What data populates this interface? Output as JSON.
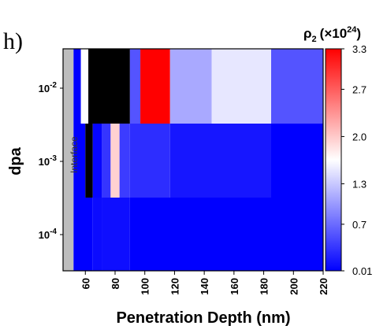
{
  "panel_label": "h)",
  "chart_data": {
    "type": "heatmap",
    "xlabel": "Penetration Depth (nm)",
    "ylabel": "dpa",
    "x_ticks": [
      "60",
      "80",
      "100",
      "120",
      "140",
      "160",
      "180",
      "200",
      "220"
    ],
    "y_ticks": [
      {
        "base": "10",
        "exp": "-2"
      },
      {
        "base": "10",
        "exp": "-3"
      },
      {
        "base": "10",
        "exp": "-4"
      }
    ],
    "xlim": [
      45,
      220
    ],
    "interface_label": "Interface",
    "interface_range_nm": [
      45,
      52
    ],
    "colorbar": {
      "title_symbol": "ρ",
      "title_sub": "2",
      "title_factor": "(×10",
      "title_exp": "24",
      "title_close": ")",
      "min": 0.01,
      "max": 3.3,
      "ticks": [
        "3.3",
        "2.7",
        "2.0",
        "1.3",
        "0.7",
        "0.01"
      ],
      "tick_values": [
        3.3,
        2.7,
        2.0,
        1.3,
        0.7,
        0.01
      ],
      "colors": [
        "#0000ff",
        "#ffffff",
        "#ff0000"
      ]
    },
    "rows": [
      {
        "dpa_band": "10^-2",
        "cells": [
          {
            "x0": 52,
            "x1": 57,
            "value": 0.01
          },
          {
            "x0": 57,
            "x1": 62,
            "value": 1.65
          },
          {
            "x0": 62,
            "x1": 90,
            "value": "black"
          },
          {
            "x0": 90,
            "x1": 97,
            "value": 0.55
          },
          {
            "x0": 97,
            "x1": 117,
            "value": 3.3
          },
          {
            "x0": 117,
            "x1": 145,
            "value": 1.1
          },
          {
            "x0": 145,
            "x1": 185,
            "value": 1.5
          },
          {
            "x0": 185,
            "x1": 220,
            "value": 0.55
          }
        ]
      },
      {
        "dpa_band": "10^-3",
        "cells": [
          {
            "x0": 52,
            "x1": 60,
            "value": 0.01
          },
          {
            "x0": 60,
            "x1": 65,
            "value": "black"
          },
          {
            "x0": 65,
            "x1": 71,
            "value": 0.05
          },
          {
            "x0": 71,
            "x1": 77,
            "value": 0.35
          },
          {
            "x0": 77,
            "x1": 83,
            "value": 1.95
          },
          {
            "x0": 83,
            "x1": 90,
            "value": 0.4
          },
          {
            "x0": 90,
            "x1": 117,
            "value": 0.3
          },
          {
            "x0": 117,
            "x1": 185,
            "value": 0.15
          },
          {
            "x0": 185,
            "x1": 220,
            "value": 0.01
          }
        ]
      },
      {
        "dpa_band": "10^-4",
        "cells": [
          {
            "x0": 52,
            "x1": 65,
            "value": 0.01
          },
          {
            "x0": 65,
            "x1": 71,
            "value": 0.08
          },
          {
            "x0": 71,
            "x1": 90,
            "value": 0.1
          },
          {
            "x0": 90,
            "x1": 220,
            "value": 0.01
          }
        ]
      }
    ]
  }
}
